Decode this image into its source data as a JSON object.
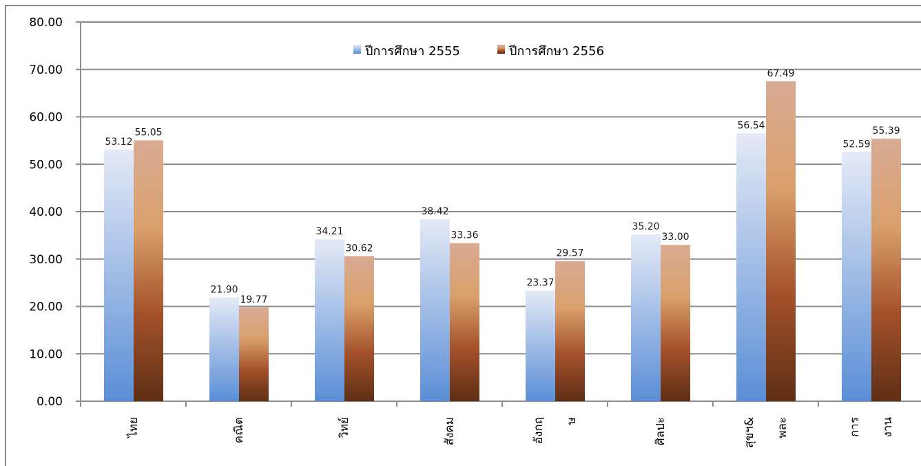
{
  "chart_data": {
    "type": "bar",
    "categories": [
      "ไทย",
      "คณิต",
      "วิทย์",
      "สังคม",
      "อังกฤษ",
      "ศิลปะ",
      "สุขฯ&พละ",
      "การงาน"
    ],
    "category_lines": [
      [
        "ไทย"
      ],
      [
        "คณิต"
      ],
      [
        "วิทย์"
      ],
      [
        "สังคม"
      ],
      [
        "อังกฤ",
        "ษ"
      ],
      [
        "ศิลปะ"
      ],
      [
        "สุขฯ&",
        "พละ"
      ],
      [
        "การ",
        "งาน"
      ]
    ],
    "series": [
      {
        "name": "ปีการศึกษา 2555",
        "values": [
          53.12,
          21.9,
          34.21,
          38.42,
          23.37,
          35.2,
          56.54,
          52.59
        ],
        "labels": [
          "53.12",
          "21.90",
          "34.21",
          "38.42",
          "23.37",
          "35.20",
          "56.54",
          "52.59"
        ],
        "gradient": [
          "#e4eaf6",
          "#5b8ed6"
        ]
      },
      {
        "name": "ปีการศึกษา 2556",
        "values": [
          55.05,
          19.77,
          30.62,
          33.36,
          29.57,
          33.0,
          67.49,
          55.39
        ],
        "labels": [
          "55.05",
          "19.77",
          "30.62",
          "33.36",
          "29.57",
          "33.00",
          "67.49",
          "55.39"
        ],
        "gradient": [
          "#d9ab94",
          "#d9a06c",
          "#a4512a",
          "#5e2f15"
        ]
      }
    ],
    "yticks": [
      "0.00",
      "10.00",
      "20.00",
      "30.00",
      "40.00",
      "50.00",
      "60.00",
      "70.00",
      "80.00"
    ],
    "ylim": [
      0,
      80
    ],
    "grid": true,
    "legend": "top-center"
  }
}
